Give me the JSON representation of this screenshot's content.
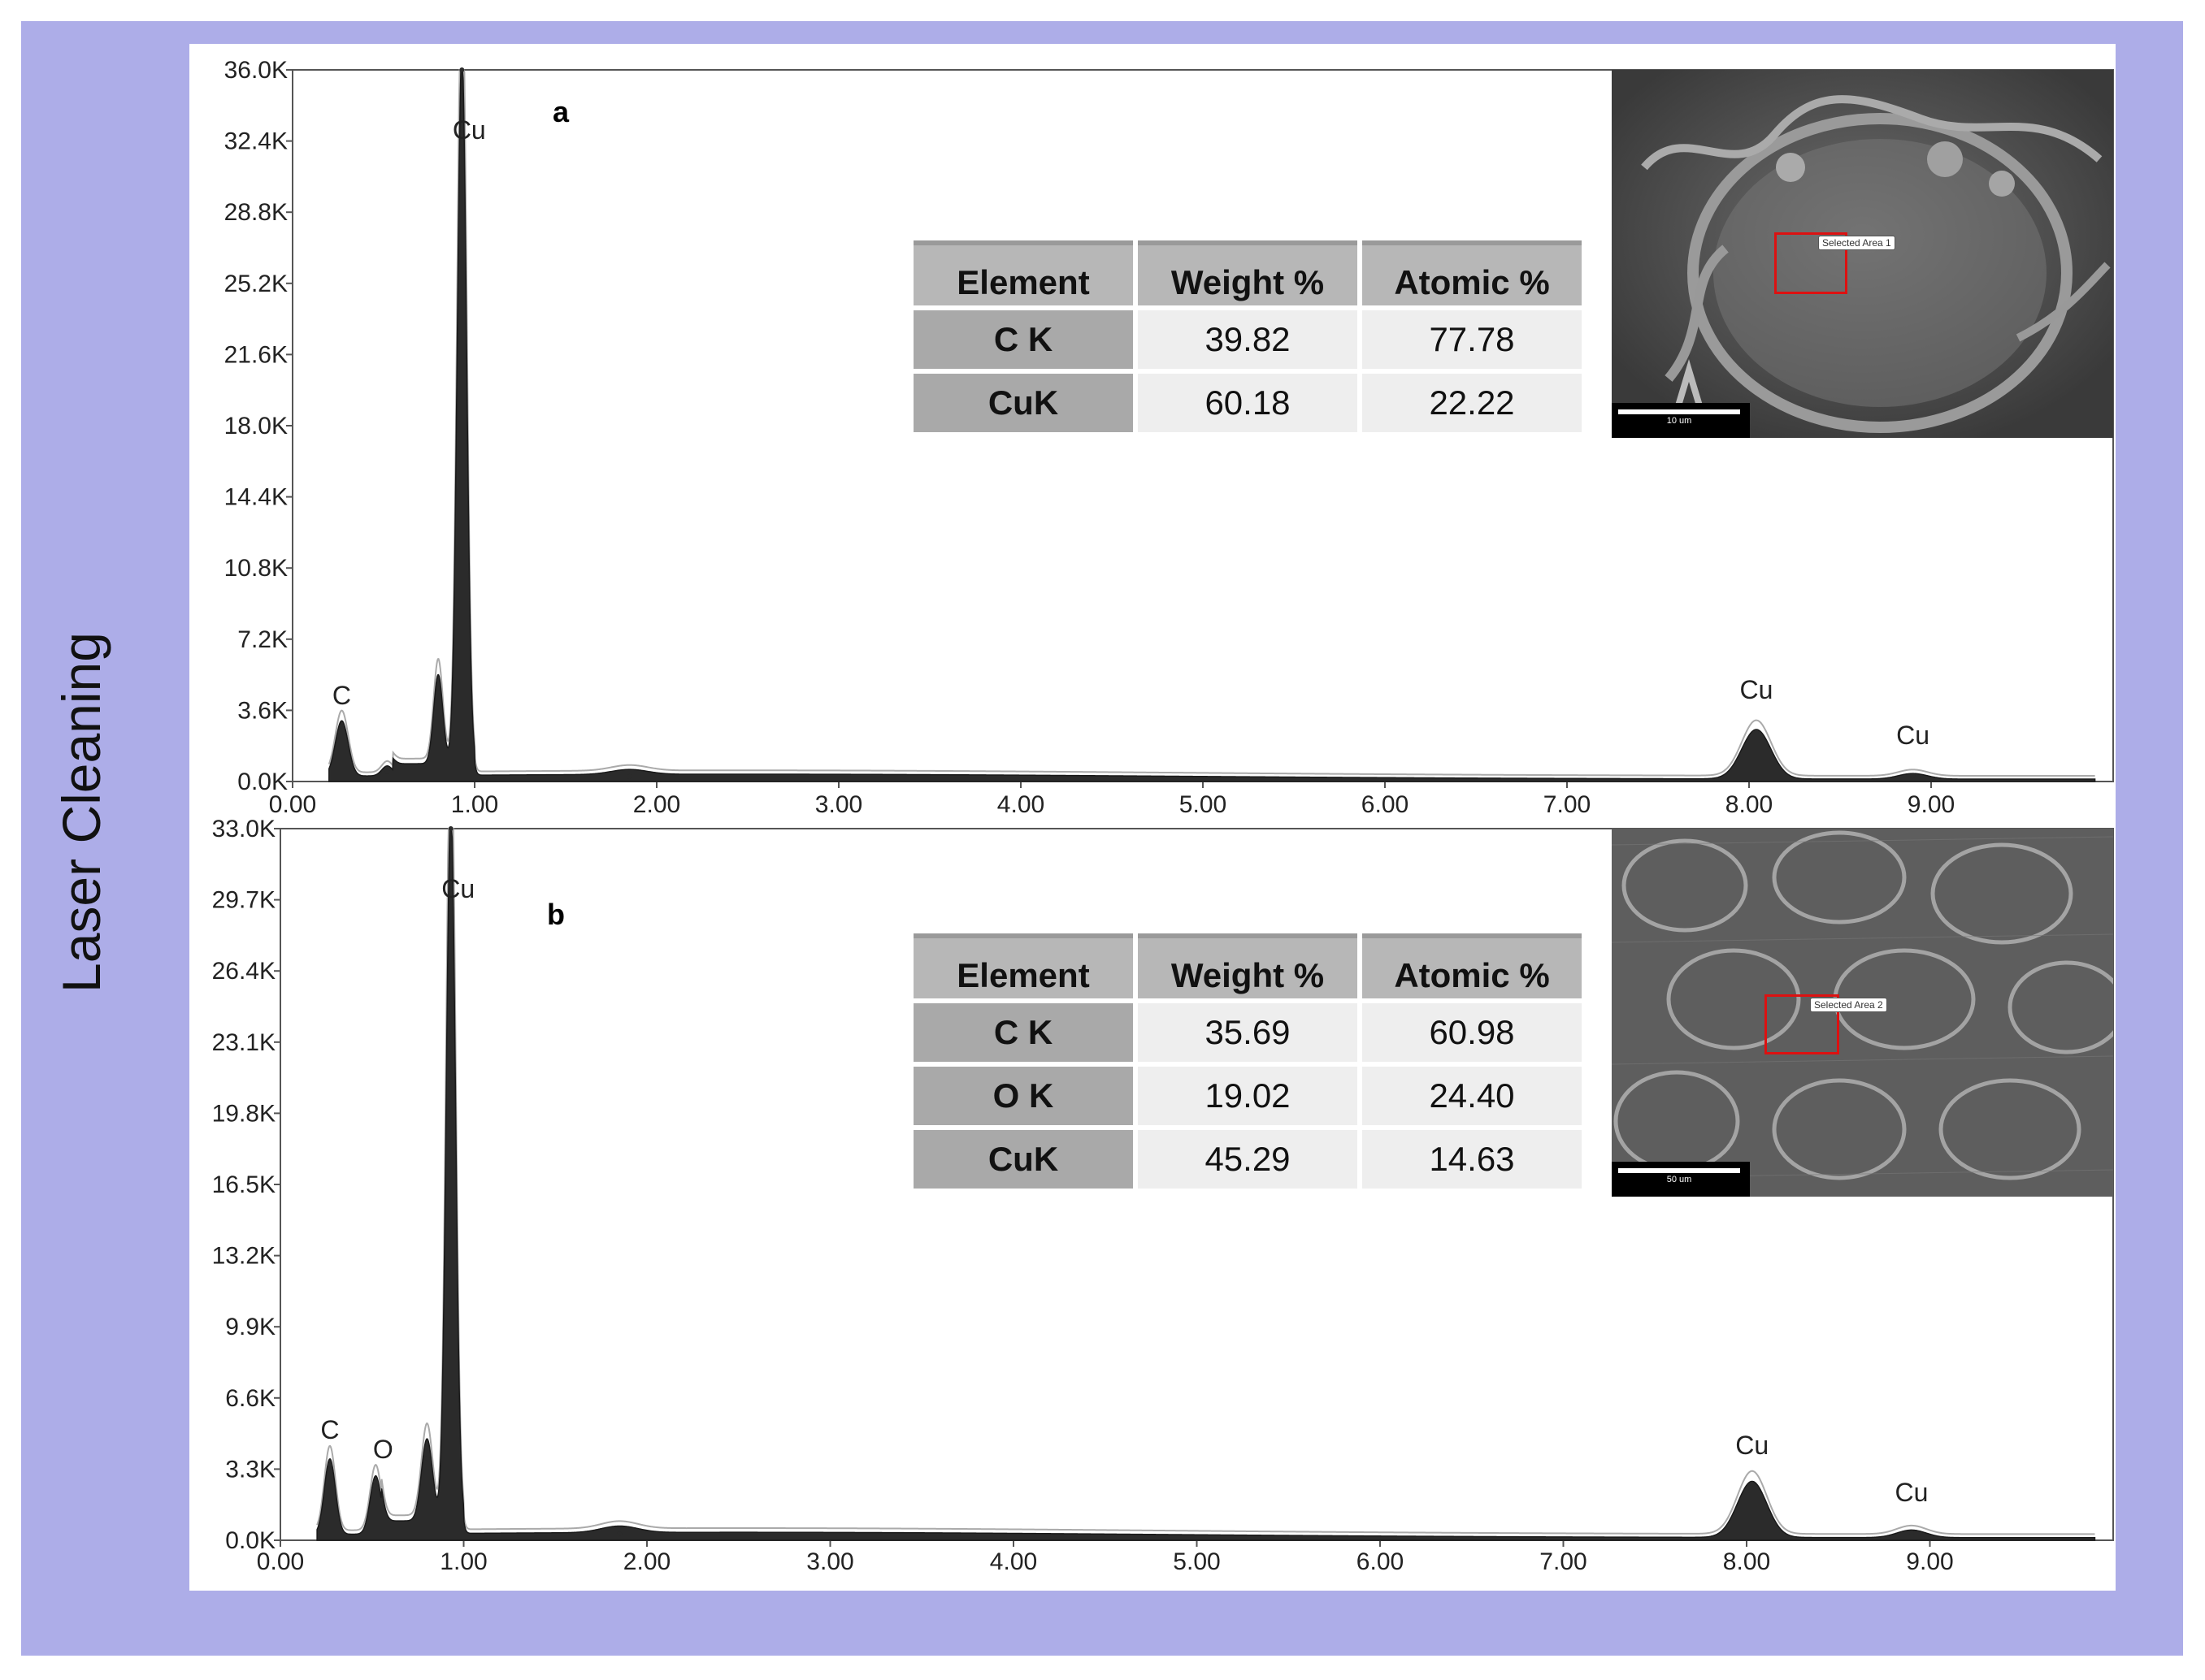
{
  "side_label": "Laser Cleaning",
  "chart_data": [
    {
      "type": "line",
      "panel_label": "a",
      "x_ticks": [
        "0.00",
        "1.00",
        "2.00",
        "3.00",
        "4.00",
        "5.00",
        "6.00",
        "7.00",
        "8.00",
        "9.00"
      ],
      "y_ticks": [
        "0.0K",
        "3.6K",
        "7.2K",
        "10.8K",
        "14.4K",
        "18.0K",
        "21.6K",
        "25.2K",
        "28.8K",
        "32.4K",
        "36.0K"
      ],
      "xlim": [
        0,
        10.0
      ],
      "ylim": [
        0,
        36000
      ],
      "peaks": [
        {
          "label": "C",
          "x": 0.27,
          "y": 2800,
          "width": 0.035
        },
        {
          "label": "",
          "x": 0.52,
          "y": 500,
          "width": 0.03
        },
        {
          "label": "",
          "x": 0.8,
          "y": 4500,
          "width": 0.025
        },
        {
          "label": "Cu",
          "x": 0.93,
          "y": 36000,
          "width": 0.025
        },
        {
          "label": "",
          "x": 1.85,
          "y": 250,
          "width": 0.1
        },
        {
          "label": "Cu",
          "x": 8.04,
          "y": 2500,
          "width": 0.08
        },
        {
          "label": "Cu",
          "x": 8.9,
          "y": 280,
          "width": 0.08
        }
      ],
      "peak_labels": [
        {
          "text": "C",
          "x": 0.27,
          "y": 3900
        },
        {
          "text": "Cu",
          "x": 0.97,
          "y": 32500
        },
        {
          "text": "Cu",
          "x": 8.04,
          "y": 4200
        },
        {
          "text": "Cu",
          "x": 8.9,
          "y": 1900
        }
      ],
      "table": {
        "headers": [
          "Element",
          "Weight %",
          "Atomic %"
        ],
        "rows": [
          {
            "element": "C K",
            "weight": "39.82",
            "atomic": "77.78"
          },
          {
            "element": "CuK",
            "weight": "60.18",
            "atomic": "22.22"
          }
        ]
      },
      "sem": {
        "area_label": "Selected Area 1",
        "scale": "10 um"
      }
    },
    {
      "type": "line",
      "panel_label": "b",
      "x_ticks": [
        "0.00",
        "1.00",
        "2.00",
        "3.00",
        "4.00",
        "5.00",
        "6.00",
        "7.00",
        "8.00",
        "9.00"
      ],
      "y_ticks": [
        "0.0K",
        "3.3K",
        "6.6K",
        "9.9K",
        "13.2K",
        "16.5K",
        "19.8K",
        "23.1K",
        "26.4K",
        "29.7K",
        "33.0K"
      ],
      "xlim": [
        0,
        10.0
      ],
      "ylim": [
        0,
        33000
      ],
      "peaks": [
        {
          "label": "C",
          "x": 0.27,
          "y": 3500,
          "width": 0.03
        },
        {
          "label": "O",
          "x": 0.52,
          "y": 2700,
          "width": 0.03
        },
        {
          "label": "",
          "x": 0.8,
          "y": 3800,
          "width": 0.03
        },
        {
          "label": "Cu",
          "x": 0.93,
          "y": 33000,
          "width": 0.025
        },
        {
          "label": "",
          "x": 1.85,
          "y": 300,
          "width": 0.1
        },
        {
          "label": "Cu",
          "x": 8.03,
          "y": 2600,
          "width": 0.08
        },
        {
          "label": "Cu",
          "x": 8.9,
          "y": 350,
          "width": 0.08
        }
      ],
      "peak_labels": [
        {
          "text": "C",
          "x": 0.27,
          "y": 4700
        },
        {
          "text": "O",
          "x": 0.56,
          "y": 3800
        },
        {
          "text": "Cu",
          "x": 0.97,
          "y": 29800
        },
        {
          "text": "Cu",
          "x": 8.03,
          "y": 4000
        },
        {
          "text": "Cu",
          "x": 8.9,
          "y": 1800
        }
      ],
      "table": {
        "headers": [
          "Element",
          "Weight %",
          "Atomic %"
        ],
        "rows": [
          {
            "element": "C K",
            "weight": "35.69",
            "atomic": "60.98"
          },
          {
            "element": "O K",
            "weight": "19.02",
            "atomic": "24.40"
          },
          {
            "element": "CuK",
            "weight": "45.29",
            "atomic": "14.63"
          }
        ]
      },
      "sem": {
        "area_label": "Selected Area 2",
        "scale": "50 um"
      }
    }
  ]
}
